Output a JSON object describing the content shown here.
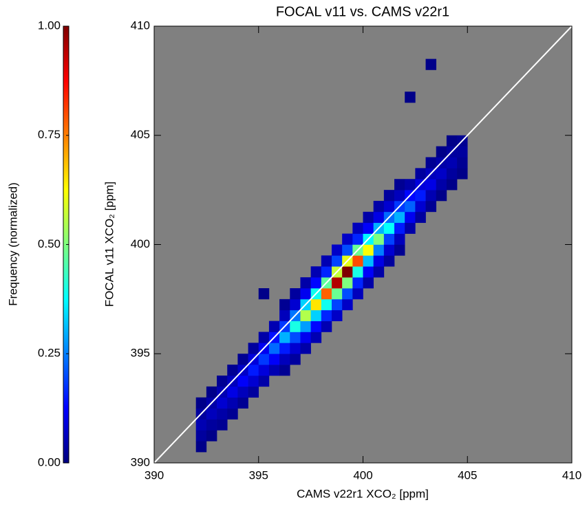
{
  "chart_data": {
    "type": "histogram2d",
    "title": "FOCAL v11 vs. CAMS v22r1",
    "x_label": "CAMS v22r1 XCO₂ [ppm]",
    "y_label": "FOCAL v11 XCO₂ [ppm]",
    "colorbar_label": "Frequency (normalized)",
    "xlim": [
      390,
      410
    ],
    "ylim": [
      390,
      410
    ],
    "xticks": [
      390,
      395,
      400,
      405,
      410
    ],
    "yticks": [
      390,
      395,
      400,
      405,
      410
    ],
    "clim": [
      0,
      1
    ],
    "cticks": [
      {
        "value": 0,
        "label": "0.00"
      },
      {
        "value": 0.25,
        "label": "0.25"
      },
      {
        "value": 0.5,
        "label": "0.50"
      },
      {
        "value": 0.75,
        "label": "0.75"
      },
      {
        "value": 1,
        "label": "1.00"
      }
    ],
    "colormap": [
      "#00007f",
      "#0000ff",
      "#007fff",
      "#00ffff",
      "#7fff7f",
      "#ffff00",
      "#ff7f00",
      "#ff0000",
      "#7f0000"
    ],
    "background": "#808080",
    "identity_line": true,
    "bin_size": 0.5,
    "cells": [
      [
        392,
        390.5,
        0.01
      ],
      [
        392,
        391,
        0.03
      ],
      [
        392,
        391.5,
        0.05
      ],
      [
        392,
        392,
        0.03
      ],
      [
        392,
        392.5,
        0.01
      ],
      [
        392.5,
        391,
        0.01
      ],
      [
        392.5,
        391.5,
        0.03
      ],
      [
        392.5,
        392,
        0.06
      ],
      [
        392.5,
        392.5,
        0.04
      ],
      [
        392.5,
        393,
        0.01
      ],
      [
        393,
        391.5,
        0.02
      ],
      [
        393,
        392,
        0.04
      ],
      [
        393,
        392.5,
        0.08
      ],
      [
        393,
        393,
        0.05
      ],
      [
        393,
        393.5,
        0.02
      ],
      [
        393.5,
        392,
        0.02
      ],
      [
        393.5,
        392.5,
        0.05
      ],
      [
        393.5,
        393,
        0.1
      ],
      [
        393.5,
        393.5,
        0.06
      ],
      [
        393.5,
        394,
        0.02
      ],
      [
        394,
        392.5,
        0.02
      ],
      [
        394,
        393,
        0.06
      ],
      [
        394,
        393.5,
        0.12
      ],
      [
        394,
        394,
        0.07
      ],
      [
        394,
        394.5,
        0.02
      ],
      [
        394.5,
        393,
        0.03
      ],
      [
        394.5,
        393.5,
        0.08
      ],
      [
        394.5,
        394,
        0.15
      ],
      [
        394.5,
        394.5,
        0.09
      ],
      [
        394.5,
        395,
        0.03
      ],
      [
        395,
        393.5,
        0.04
      ],
      [
        395,
        394,
        0.09
      ],
      [
        395,
        394.5,
        0.18
      ],
      [
        395,
        395,
        0.11
      ],
      [
        395,
        395.5,
        0.04
      ],
      [
        395.5,
        394,
        0.05
      ],
      [
        395.5,
        394.5,
        0.12
      ],
      [
        395.5,
        395,
        0.23
      ],
      [
        395.5,
        395.5,
        0.14
      ],
      [
        395.5,
        396,
        0.05
      ],
      [
        396,
        394,
        0.02
      ],
      [
        396,
        394.5,
        0.06
      ],
      [
        396,
        395,
        0.15
      ],
      [
        396,
        395.5,
        0.3
      ],
      [
        396,
        396,
        0.18
      ],
      [
        396,
        396.5,
        0.06
      ],
      [
        396,
        397,
        0.02
      ],
      [
        396.5,
        394.5,
        0.03
      ],
      [
        396.5,
        395,
        0.08
      ],
      [
        396.5,
        395.5,
        0.2
      ],
      [
        396.5,
        396,
        0.4
      ],
      [
        396.5,
        396.5,
        0.24
      ],
      [
        396.5,
        397,
        0.08
      ],
      [
        396.5,
        397.5,
        0.03
      ],
      [
        397,
        395,
        0.04
      ],
      [
        397,
        395.5,
        0.11
      ],
      [
        397,
        396,
        0.28
      ],
      [
        397,
        396.5,
        0.55
      ],
      [
        397,
        397,
        0.33
      ],
      [
        397,
        397.5,
        0.11
      ],
      [
        397,
        398,
        0.04
      ],
      [
        397.5,
        395.5,
        0.05
      ],
      [
        397.5,
        396,
        0.13
      ],
      [
        397.5,
        396.5,
        0.33
      ],
      [
        397.5,
        397,
        0.65
      ],
      [
        397.5,
        397.5,
        0.39
      ],
      [
        397.5,
        398,
        0.13
      ],
      [
        397.5,
        398.5,
        0.05
      ],
      [
        398,
        396,
        0.05
      ],
      [
        398,
        396.5,
        0.16
      ],
      [
        398,
        397,
        0.39
      ],
      [
        398,
        397.5,
        0.78
      ],
      [
        398,
        398,
        0.47
      ],
      [
        398,
        398.5,
        0.16
      ],
      [
        398,
        399,
        0.05
      ],
      [
        398.5,
        396.5,
        0.07
      ],
      [
        398.5,
        397,
        0.19
      ],
      [
        398.5,
        397.5,
        0.48
      ],
      [
        398.5,
        398,
        0.95
      ],
      [
        398.5,
        398.5,
        0.57
      ],
      [
        398.5,
        399,
        0.19
      ],
      [
        398.5,
        399.5,
        0.07
      ],
      [
        399,
        397,
        0.07
      ],
      [
        399,
        397.5,
        0.2
      ],
      [
        399,
        398,
        0.5
      ],
      [
        399,
        398.5,
        1
      ],
      [
        399,
        399,
        0.6
      ],
      [
        399,
        399.5,
        0.2
      ],
      [
        399,
        400,
        0.07
      ],
      [
        399.5,
        397.5,
        0.06
      ],
      [
        399.5,
        398,
        0.16
      ],
      [
        399.5,
        398.5,
        0.4
      ],
      [
        399.5,
        399,
        0.8
      ],
      [
        399.5,
        399.5,
        0.48
      ],
      [
        399.5,
        400,
        0.16
      ],
      [
        399.5,
        400.5,
        0.06
      ],
      [
        400,
        398,
        0.04
      ],
      [
        400,
        398.5,
        0.12
      ],
      [
        400,
        399,
        0.31
      ],
      [
        400,
        399.5,
        0.62
      ],
      [
        400,
        400,
        0.37
      ],
      [
        400,
        400.5,
        0.12
      ],
      [
        400,
        401,
        0.04
      ],
      [
        400.5,
        398.5,
        0.04
      ],
      [
        400.5,
        399,
        0.1
      ],
      [
        400.5,
        399.5,
        0.25
      ],
      [
        400.5,
        400,
        0.5
      ],
      [
        400.5,
        400.5,
        0.3
      ],
      [
        400.5,
        401,
        0.1
      ],
      [
        400.5,
        401.5,
        0.04
      ],
      [
        401,
        399,
        0.03
      ],
      [
        401,
        399.5,
        0.08
      ],
      [
        401,
        400,
        0.19
      ],
      [
        401,
        400.5,
        0.38
      ],
      [
        401,
        401,
        0.23
      ],
      [
        401,
        401.5,
        0.08
      ],
      [
        401,
        402,
        0.03
      ],
      [
        401.5,
        399.5,
        0.02
      ],
      [
        401.5,
        400,
        0.06
      ],
      [
        401.5,
        400.5,
        0.15
      ],
      [
        401.5,
        401,
        0.3
      ],
      [
        401.5,
        401.5,
        0.18
      ],
      [
        401.5,
        402,
        0.06
      ],
      [
        401.5,
        402.5,
        0.02
      ],
      [
        402,
        400.5,
        0.04
      ],
      [
        402,
        401,
        0.11
      ],
      [
        402,
        401.5,
        0.22
      ],
      [
        402,
        402,
        0.13
      ],
      [
        402,
        402.5,
        0.04
      ],
      [
        402.5,
        401,
        0.03
      ],
      [
        402.5,
        401.5,
        0.08
      ],
      [
        402.5,
        402,
        0.15
      ],
      [
        402.5,
        402.5,
        0.09
      ],
      [
        402.5,
        403,
        0.03
      ],
      [
        403,
        401.5,
        0.02
      ],
      [
        403,
        402,
        0.05
      ],
      [
        403,
        402.5,
        0.1
      ],
      [
        403,
        403,
        0.06
      ],
      [
        403,
        403.5,
        0.02
      ],
      [
        403.5,
        402,
        0.01
      ],
      [
        403.5,
        402.5,
        0.04
      ],
      [
        403.5,
        403,
        0.07
      ],
      [
        403.5,
        403.5,
        0.04
      ],
      [
        403.5,
        404,
        0.01
      ],
      [
        404,
        402.5,
        0.01
      ],
      [
        404,
        403,
        0.03
      ],
      [
        404,
        403.5,
        0.05
      ],
      [
        404,
        404,
        0.03
      ],
      [
        404,
        404.5,
        0.01
      ],
      [
        404.5,
        403,
        0.01
      ],
      [
        404.5,
        403.5,
        0.02
      ],
      [
        404.5,
        404,
        0.03
      ],
      [
        404.5,
        404.5,
        0.02
      ],
      [
        403,
        408,
        0.01
      ],
      [
        402,
        406.5,
        0.01
      ],
      [
        395,
        397.5,
        0.01
      ]
    ]
  }
}
